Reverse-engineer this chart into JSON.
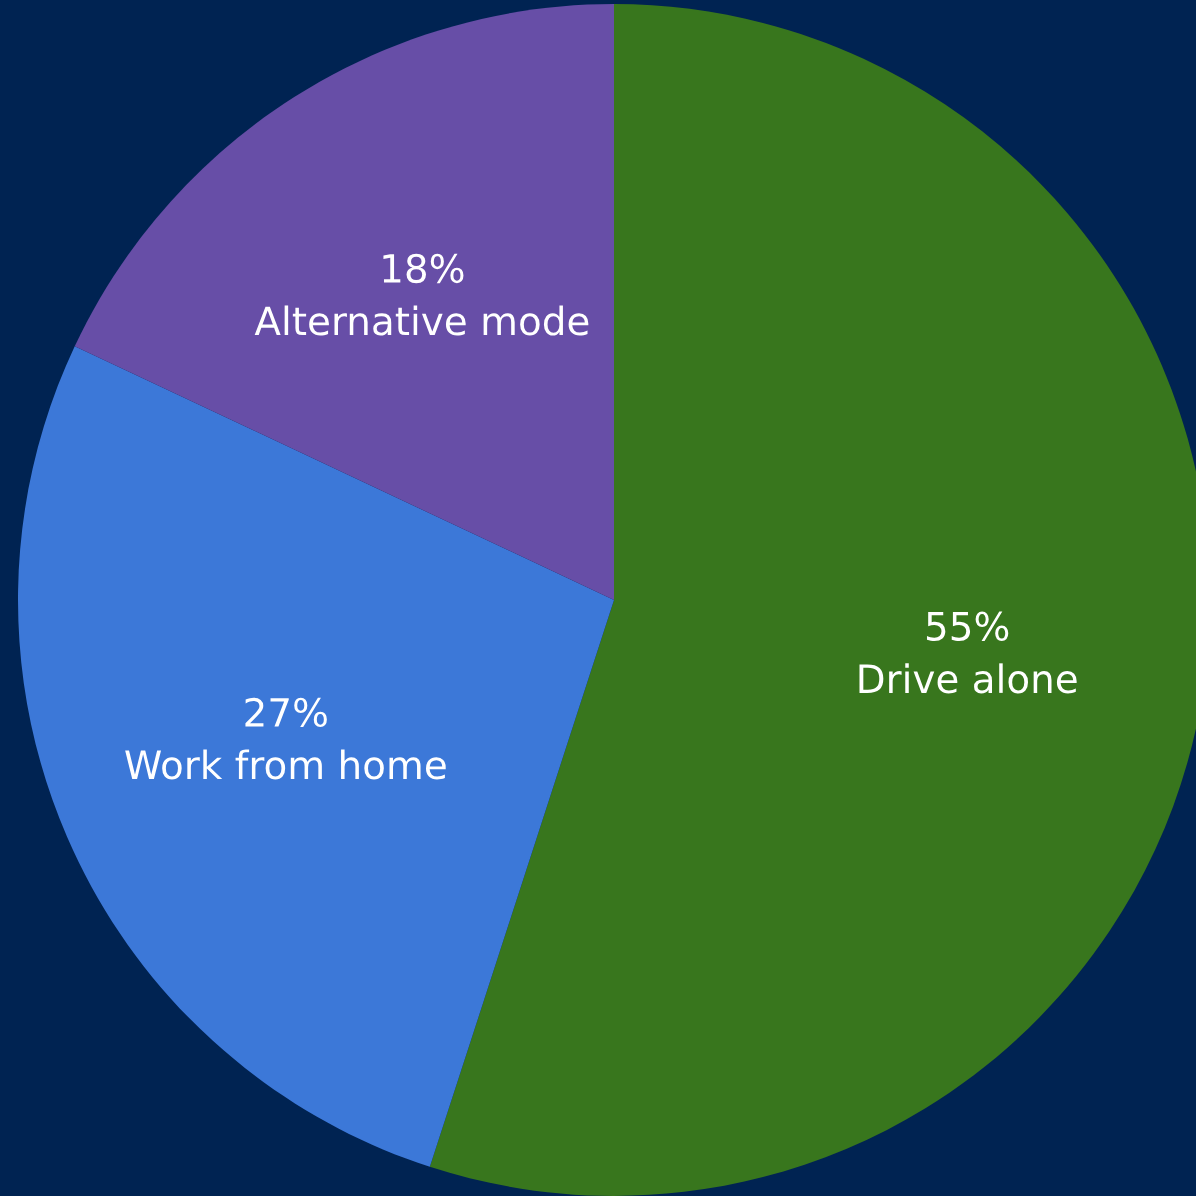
{
  "chart_data": {
    "type": "pie",
    "categories": [
      "Drive alone",
      "Work from home",
      "Alternative mode"
    ],
    "values": [
      55,
      27,
      18
    ],
    "value_labels": [
      "55%",
      "27%",
      "18%"
    ],
    "colors": [
      "#38761d",
      "#3c78d8",
      "#674ea7"
    ],
    "legend": false
  }
}
